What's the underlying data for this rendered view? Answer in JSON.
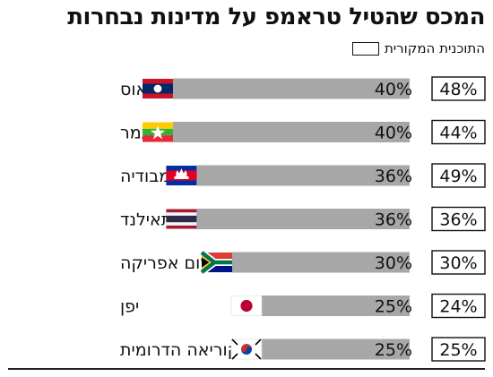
{
  "chart_data": {
    "type": "bar",
    "title": "המכס שהטיל טראמפ על מדינות נבחרות",
    "legend": "התוכנית המקורית",
    "categories": [
      "לאוס",
      "מיאנמר",
      "קמבודיה",
      "תאילנד",
      "דרום אפריקה",
      "יפן",
      "קוריאה הדרומית"
    ],
    "series": [
      {
        "values": [
          40,
          40,
          36,
          36,
          30,
          25,
          25
        ],
        "labels": [
          "40%",
          "40%",
          "36%",
          "36%",
          "30%",
          "25%",
          "25%"
        ]
      },
      {
        "name": "התוכנית המקורית",
        "values": [
          48,
          44,
          49,
          36,
          30,
          24,
          25
        ],
        "labels": [
          "48%",
          "44%",
          "49%",
          "36%",
          "30%",
          "24%",
          "25%"
        ]
      }
    ],
    "flags": [
      "laos",
      "myanmar",
      "cambodia",
      "thailand",
      "south-africa",
      "japan",
      "south-korea"
    ],
    "colors": {
      "bar": "#a7a7a7",
      "text": "#111111",
      "box_border": "#111111"
    }
  }
}
